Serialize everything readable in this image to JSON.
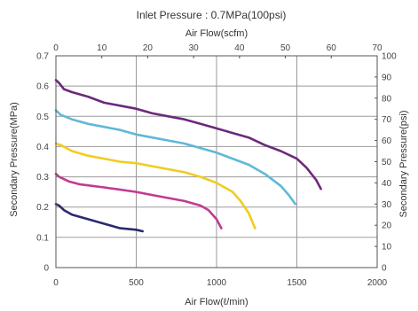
{
  "chart_data": {
    "type": "line",
    "title": "Inlet Pressure : 0.7MPa(100psi)",
    "xlabel": "Air Flow(ℓ/min)",
    "xlabel_top": "Air Flow(scfm)",
    "ylabel": "Secondary Pressure(MPa)",
    "ylabel_right": "Secondary Pressure(psi)",
    "xlim": [
      0,
      2000
    ],
    "ylim": [
      0,
      0.7
    ],
    "xlim_top": [
      0,
      70
    ],
    "ylim_right": [
      0,
      100
    ],
    "x_ticks": [
      "0",
      "500",
      "1000",
      "1500",
      "2000"
    ],
    "x_top_ticks": [
      "0",
      "10",
      "20",
      "30",
      "40",
      "50",
      "60",
      "70"
    ],
    "y_ticks": [
      "0",
      "0.1",
      "0.2",
      "0.3",
      "0.4",
      "0.5",
      "0.6",
      "0.7"
    ],
    "y_right_ticks": [
      "0",
      "10",
      "20",
      "30",
      "40",
      "50",
      "60",
      "70",
      "80",
      "90",
      "100"
    ],
    "grid": true,
    "series": [
      {
        "color": "#6b2a7a",
        "points": [
          [
            0,
            0.62
          ],
          [
            20,
            0.61
          ],
          [
            50,
            0.59
          ],
          [
            100,
            0.58
          ],
          [
            200,
            0.565
          ],
          [
            300,
            0.545
          ],
          [
            400,
            0.535
          ],
          [
            500,
            0.525
          ],
          [
            600,
            0.51
          ],
          [
            700,
            0.5
          ],
          [
            800,
            0.49
          ],
          [
            900,
            0.475
          ],
          [
            1000,
            0.46
          ],
          [
            1100,
            0.445
          ],
          [
            1200,
            0.43
          ],
          [
            1300,
            0.405
          ],
          [
            1400,
            0.385
          ],
          [
            1500,
            0.36
          ],
          [
            1560,
            0.33
          ],
          [
            1620,
            0.29
          ],
          [
            1650,
            0.26
          ]
        ]
      },
      {
        "color": "#5fb8d8",
        "points": [
          [
            0,
            0.52
          ],
          [
            30,
            0.505
          ],
          [
            100,
            0.49
          ],
          [
            200,
            0.475
          ],
          [
            300,
            0.465
          ],
          [
            400,
            0.455
          ],
          [
            500,
            0.44
          ],
          [
            600,
            0.43
          ],
          [
            700,
            0.42
          ],
          [
            800,
            0.41
          ],
          [
            900,
            0.395
          ],
          [
            1000,
            0.38
          ],
          [
            1100,
            0.36
          ],
          [
            1200,
            0.34
          ],
          [
            1300,
            0.31
          ],
          [
            1400,
            0.27
          ],
          [
            1450,
            0.24
          ],
          [
            1490,
            0.21
          ]
        ]
      },
      {
        "color": "#f2cc1f",
        "points": [
          [
            0,
            0.41
          ],
          [
            30,
            0.405
          ],
          [
            100,
            0.385
          ],
          [
            200,
            0.37
          ],
          [
            300,
            0.36
          ],
          [
            400,
            0.35
          ],
          [
            500,
            0.345
          ],
          [
            600,
            0.335
          ],
          [
            700,
            0.325
          ],
          [
            800,
            0.315
          ],
          [
            900,
            0.3
          ],
          [
            1000,
            0.28
          ],
          [
            1100,
            0.25
          ],
          [
            1150,
            0.22
          ],
          [
            1200,
            0.18
          ],
          [
            1240,
            0.13
          ]
        ]
      },
      {
        "color": "#c23a92",
        "points": [
          [
            0,
            0.31
          ],
          [
            20,
            0.3
          ],
          [
            80,
            0.285
          ],
          [
            150,
            0.275
          ],
          [
            300,
            0.265
          ],
          [
            500,
            0.25
          ],
          [
            600,
            0.24
          ],
          [
            700,
            0.23
          ],
          [
            800,
            0.22
          ],
          [
            900,
            0.205
          ],
          [
            950,
            0.19
          ],
          [
            1000,
            0.16
          ],
          [
            1030,
            0.13
          ]
        ]
      },
      {
        "color": "#2a2a6e",
        "points": [
          [
            0,
            0.21
          ],
          [
            20,
            0.205
          ],
          [
            50,
            0.19
          ],
          [
            100,
            0.175
          ],
          [
            200,
            0.16
          ],
          [
            300,
            0.145
          ],
          [
            400,
            0.13
          ],
          [
            500,
            0.125
          ],
          [
            540,
            0.12
          ]
        ]
      }
    ]
  }
}
